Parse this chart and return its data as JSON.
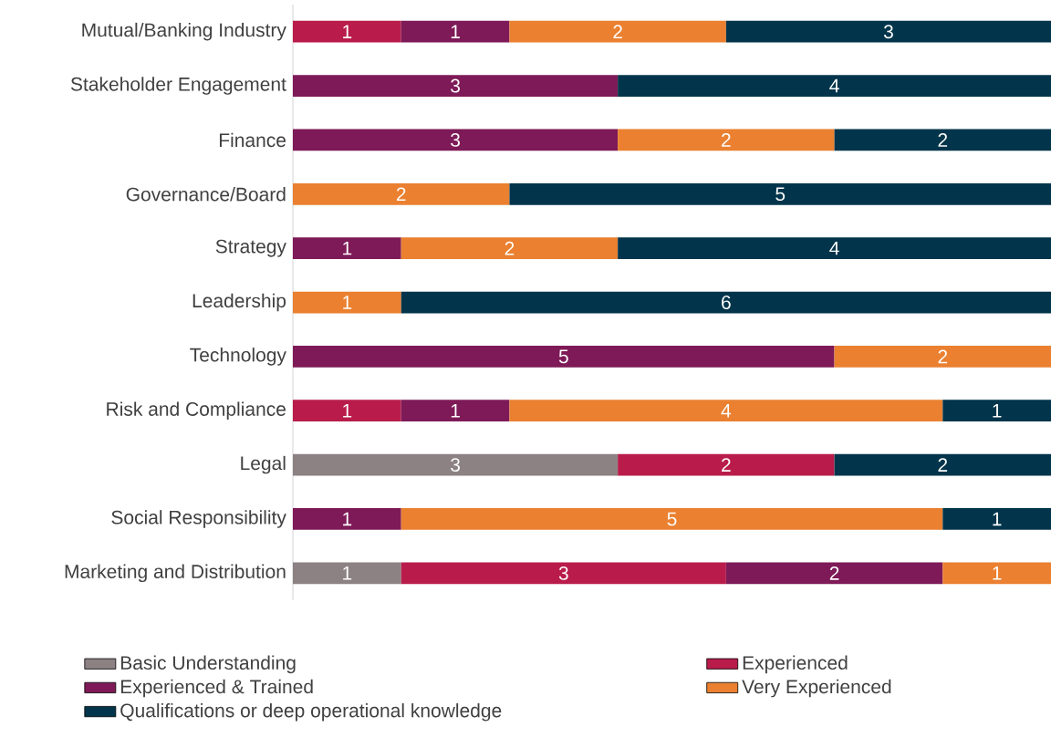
{
  "chart_data": {
    "type": "bar",
    "orientation": "horizontal",
    "stacked": true,
    "data_labels": true,
    "legend": "bottom",
    "xlim": [
      0,
      7
    ],
    "categories": [
      "Mutual/Banking Industry",
      "Stakeholder Engagement",
      "Finance",
      "Governance/Board",
      "Strategy",
      "Leadership",
      "Technology",
      "Risk and Compliance",
      "Legal",
      "Social Responsibility",
      "Marketing and Distribution"
    ],
    "series": [
      {
        "name": "Basic Understanding",
        "color": "#8c8283",
        "values": [
          null,
          null,
          null,
          null,
          null,
          null,
          null,
          null,
          3,
          null,
          1
        ]
      },
      {
        "name": "Experienced",
        "color": "#b91c4b",
        "values": [
          1,
          null,
          null,
          null,
          null,
          null,
          null,
          1,
          2,
          null,
          3
        ]
      },
      {
        "name": "Experienced & Trained",
        "color": "#7e1a57",
        "values": [
          1,
          3,
          3,
          null,
          1,
          null,
          5,
          1,
          null,
          1,
          2
        ]
      },
      {
        "name": "Very Experienced",
        "color": "#ea8030",
        "values": [
          2,
          null,
          2,
          2,
          2,
          1,
          2,
          4,
          null,
          5,
          1
        ]
      },
      {
        "name": "Qualifications or deep operational knowledge",
        "color": "#02354b",
        "values": [
          3,
          4,
          2,
          5,
          4,
          6,
          null,
          1,
          2,
          1,
          null
        ]
      }
    ]
  }
}
